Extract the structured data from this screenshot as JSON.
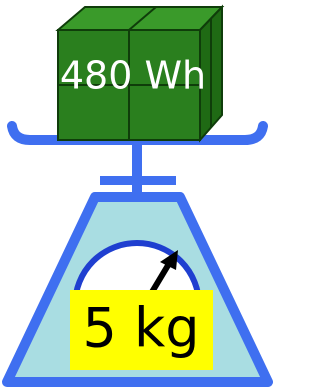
{
  "box": {
    "label": "480 Wh"
  },
  "scale": {
    "label": "5 kg"
  }
}
